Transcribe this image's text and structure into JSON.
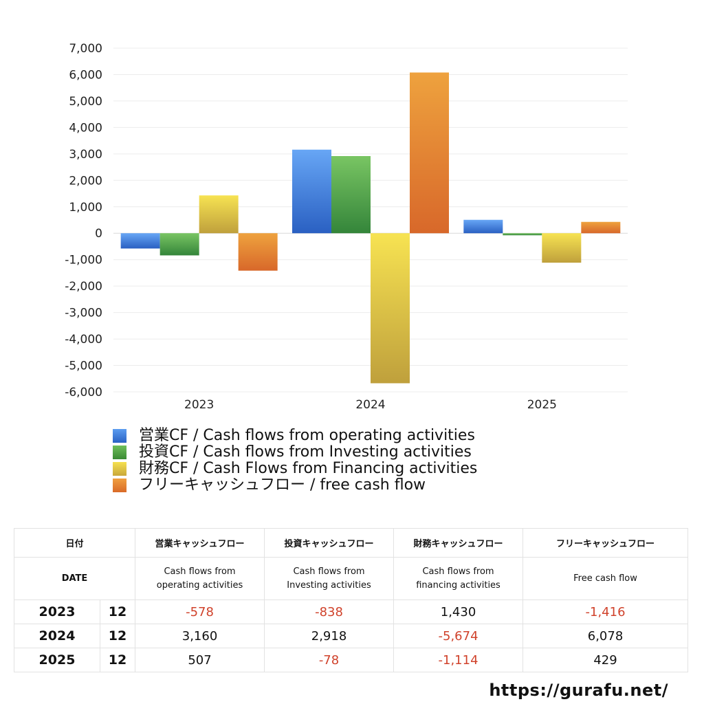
{
  "chart_data": {
    "type": "bar",
    "categories": [
      "2023",
      "2024",
      "2025"
    ],
    "series": [
      {
        "name": "営業CF / Cash flows from operating activities",
        "values": [
          -578,
          3160,
          507
        ],
        "color": "#3b7fe0"
      },
      {
        "name": "投資CF / Cash flows from Investing activities",
        "values": [
          -838,
          2918,
          -78
        ],
        "color": "#4a9e3f"
      },
      {
        "name": "財務CF / Cash Flows from Financing activities",
        "values": [
          1430,
          -5674,
          -1114
        ],
        "color": "#e6cf40"
      },
      {
        "name": "フリーキャッシュフロー / free cash flow",
        "values": [
          -1416,
          6078,
          429
        ],
        "color": "#e07a2e"
      }
    ],
    "ylim": [
      -6000,
      7000
    ],
    "yticks": [
      7000,
      6000,
      5000,
      4000,
      3000,
      2000,
      1000,
      0,
      -1000,
      -2000,
      -3000,
      -4000,
      -5000,
      -6000
    ],
    "ytick_labels": [
      "7,000",
      "6,000",
      "5,000",
      "4,000",
      "3,000",
      "2,000",
      "1,000",
      "0",
      "-1,000",
      "-2,000",
      "-3,000",
      "-4,000",
      "-5,000",
      "-6,000"
    ],
    "grid": true,
    "legend_position": "bottom-left",
    "title": "",
    "xlabel": "",
    "ylabel": ""
  },
  "legend": {
    "items": [
      "営業CF / Cash flows from operating activities",
      "投資CF / Cash flows from Investing activities",
      "財務CF / Cash Flows from Financing activities",
      "フリーキャッシュフロー / free cash flow"
    ]
  },
  "table": {
    "header_jp": {
      "date": "日付",
      "operating": "営業キャッシュフロー",
      "investing": "投資キャッシュフロー",
      "financing": "財務キャッシュフロー",
      "free": "フリーキャッシュフロー"
    },
    "header_en": {
      "date": "DATE",
      "operating_1": "Cash flows from",
      "operating_2": "operating activities",
      "investing_1": "Cash flows from",
      "investing_2": "Investing activities",
      "financing_1": "Cash flows from",
      "financing_2": "financing activities",
      "free": "Free cash flow"
    },
    "rows": [
      {
        "year": "2023",
        "month": "12",
        "operating": "-578",
        "investing": "-838",
        "financing": "1,430",
        "free": "-1,416"
      },
      {
        "year": "2024",
        "month": "12",
        "operating": "3,160",
        "investing": "2,918",
        "financing": "-5,674",
        "free": "6,078"
      },
      {
        "year": "2025",
        "month": "12",
        "operating": "507",
        "investing": "-78",
        "financing": "-1,114",
        "free": "429"
      }
    ]
  },
  "footer": {
    "url": "https://gurafu.net/"
  }
}
